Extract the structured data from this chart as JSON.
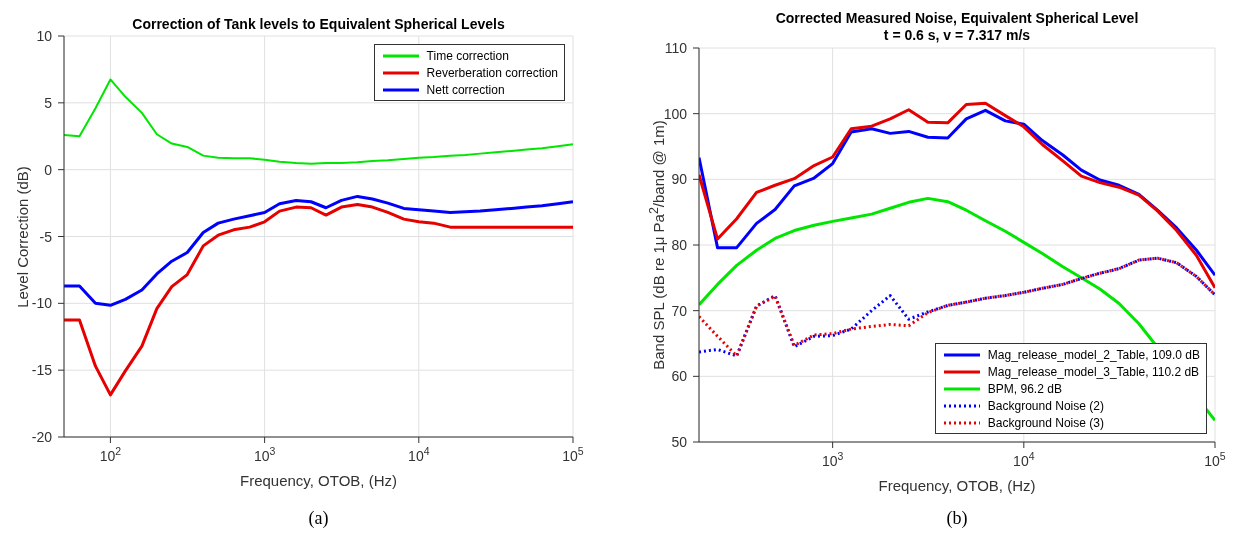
{
  "chart_data": [
    {
      "type": "line",
      "title": "Correction of Tank levels to Equivalent Spherical Levels",
      "xlabel": "Frequency, OTOB, (Hz)",
      "ylabel": "Level Correction (dB)",
      "log": "x",
      "grid": true,
      "legend": "top right",
      "xlim": [
        50,
        100000
      ],
      "xticks": [
        {
          "value": 100,
          "label": "10$^{2}$"
        },
        {
          "value": 1000,
          "label": "10$^{3}$"
        },
        {
          "value": 10000,
          "label": "10$^{4}$"
        },
        {
          "value": 100000,
          "label": "10$^{5}$"
        }
      ],
      "ylim": [
        -20,
        10
      ],
      "yticks": [
        -20,
        -15,
        -10,
        -5,
        0,
        5,
        10
      ],
      "annotations": [
        "(a)"
      ],
      "x": [
        50,
        63,
        80,
        100,
        125,
        160,
        200,
        250,
        315,
        400,
        500,
        630,
        800,
        1000,
        1250,
        1600,
        2000,
        2500,
        3150,
        4000,
        5000,
        6300,
        8000,
        10000,
        12500,
        16000,
        20000,
        25000,
        31500,
        40000,
        50000,
        63000,
        80000,
        100000
      ],
      "series": [
        {
          "name": "Time correction",
          "color": "#00e600",
          "line_style": "solid",
          "values": [
            2.6,
            2.5,
            4.6,
            6.75,
            5.45,
            4.25,
            2.65,
            1.95,
            1.7,
            1.05,
            0.9,
            0.85,
            0.85,
            0.75,
            0.6,
            0.5,
            0.45,
            0.5,
            0.5,
            0.55,
            0.65,
            0.7,
            0.8,
            0.9,
            0.95,
            1.05,
            1.1,
            1.2,
            1.3,
            1.4,
            1.5,
            1.6,
            1.75,
            1.9
          ]
        },
        {
          "name": "Reverberation correction",
          "color": "#e60000",
          "line_style": "solid",
          "values": [
            -11.25,
            -11.25,
            -14.7,
            -16.85,
            -15.05,
            -13.2,
            -10.4,
            -8.75,
            -7.85,
            -5.7,
            -4.9,
            -4.5,
            -4.3,
            -3.9,
            -3.1,
            -2.8,
            -2.85,
            -3.4,
            -2.8,
            -2.6,
            -2.8,
            -3.2,
            -3.7,
            -3.9,
            -4.0,
            -4.3,
            -4.3,
            -4.3,
            -4.3,
            -4.3,
            -4.3,
            -4.3,
            -4.3,
            -4.3
          ]
        },
        {
          "name": "Nett correction",
          "color": "#0000ff",
          "line_style": "solid",
          "values": [
            -8.7,
            -8.7,
            -10.0,
            -10.15,
            -9.7,
            -9.0,
            -7.8,
            -6.85,
            -6.2,
            -4.7,
            -4.0,
            -3.7,
            -3.45,
            -3.2,
            -2.55,
            -2.3,
            -2.4,
            -2.85,
            -2.3,
            -2.0,
            -2.2,
            -2.5,
            -2.9,
            -3.0,
            -3.1,
            -3.2,
            -3.15,
            -3.1,
            -3.0,
            -2.9,
            -2.8,
            -2.7,
            -2.55,
            -2.4
          ]
        }
      ]
    },
    {
      "type": "line",
      "title": "Corrected Measured Noise, Equivalent Spherical Level",
      "subtitle": "t = 0.6 s, v = 7.317 m/s",
      "xlabel": "Frequency, OTOB, (Hz)",
      "ylabel": "Band SPL (dB re 1μ Pa$^{2}$/band @ 1m)",
      "log": "x",
      "grid": true,
      "legend": "bottom right",
      "xlim": [
        200,
        100000
      ],
      "xticks": [
        {
          "value": 1000,
          "label": "10$^{3}$"
        },
        {
          "value": 10000,
          "label": "10$^{4}$"
        },
        {
          "value": 100000,
          "label": "10$^{5}$"
        }
      ],
      "ylim": [
        50,
        110
      ],
      "yticks": [
        50,
        60,
        70,
        80,
        90,
        100,
        110
      ],
      "annotations": [
        "(b)"
      ],
      "x": [
        200,
        250,
        315,
        400,
        500,
        630,
        800,
        1000,
        1250,
        1600,
        2000,
        2500,
        3150,
        4000,
        5000,
        6300,
        8000,
        10000,
        12500,
        16000,
        20000,
        25000,
        31500,
        40000,
        50000,
        63000,
        80000,
        100000
      ],
      "series": [
        {
          "name": "Mag_release_model_2_Table, 109.0 dB",
          "color": "#0000ff",
          "line_style": "solid",
          "values": [
            93.3,
            79.6,
            79.6,
            83.3,
            85.4,
            89.0,
            90.2,
            92.4,
            97.2,
            97.7,
            97.0,
            97.3,
            96.4,
            96.3,
            99.2,
            100.5,
            98.9,
            98.4,
            95.9,
            93.7,
            91.4,
            89.9,
            89.1,
            87.7,
            85.3,
            82.6,
            79.2,
            75.4
          ]
        },
        {
          "name": "Mag_release_model_3_Table, 110.2 dB",
          "color": "#e60000",
          "line_style": "solid",
          "values": [
            90.7,
            80.9,
            84.0,
            88.0,
            89.1,
            90.1,
            92.1,
            93.4,
            97.7,
            98.1,
            99.2,
            100.6,
            98.7,
            98.6,
            101.4,
            101.6,
            99.7,
            98.0,
            95.3,
            92.8,
            90.5,
            89.5,
            88.8,
            87.6,
            85.2,
            82.2,
            78.4,
            73.5
          ]
        },
        {
          "name": "BPM, 96.2 dB",
          "color": "#00e600",
          "line_style": "solid",
          "values": [
            70.9,
            74.0,
            76.9,
            79.2,
            81.0,
            82.2,
            83.0,
            83.6,
            84.1,
            84.7,
            85.6,
            86.5,
            87.1,
            86.6,
            85.3,
            83.7,
            82.1,
            80.4,
            78.7,
            76.7,
            75.0,
            73.3,
            71.1,
            68.0,
            null,
            null,
            null,
            53.3
          ]
        },
        {
          "name": "Background Noise (2)",
          "color": "#0000ff",
          "line_style": "dotted",
          "values": [
            63.7,
            64.1,
            63.1,
            70.7,
            72.3,
            64.5,
            66.1,
            66.2,
            67.2,
            70.0,
            72.3,
            68.7,
            69.8,
            70.8,
            71.3,
            71.9,
            72.3,
            72.8,
            73.4,
            74.0,
            74.9,
            75.7,
            76.4,
            77.7,
            78.0,
            77.3,
            75.2,
            72.4
          ]
        },
        {
          "name": "Background Noise (3)",
          "color": "#e60000",
          "line_style": "dotted",
          "values": [
            69.1,
            66.1,
            63.1,
            70.7,
            72.2,
            64.7,
            66.3,
            66.5,
            67.2,
            67.6,
            67.9,
            67.7,
            69.7,
            70.8,
            71.3,
            71.9,
            72.3,
            72.8,
            73.4,
            74.0,
            74.9,
            75.7,
            76.4,
            77.7,
            78.0,
            77.3,
            75.2,
            72.4
          ]
        }
      ]
    }
  ]
}
